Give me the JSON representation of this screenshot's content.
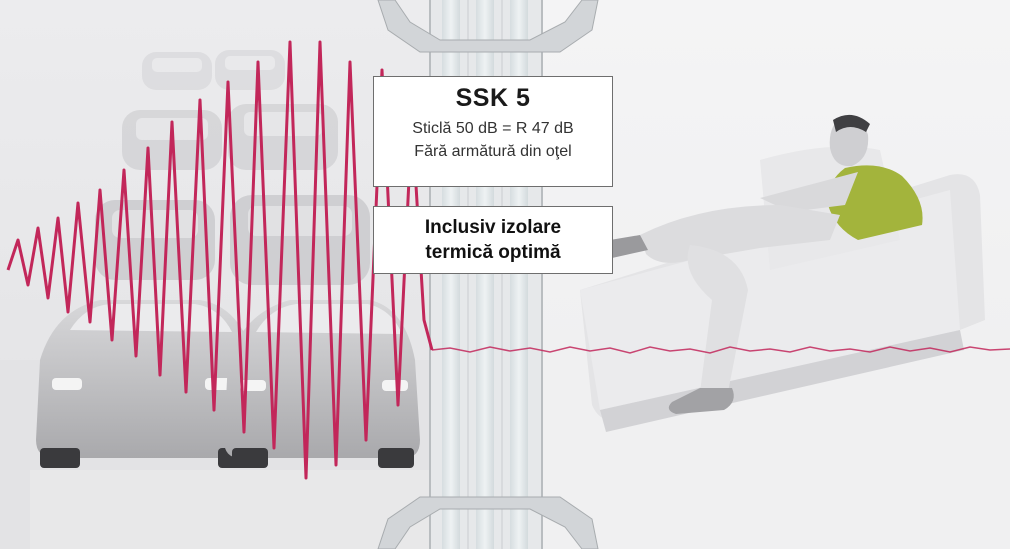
{
  "product_panel": {
    "title": "SSK 5",
    "line1": "Sticlă 50 dB = R 47 dB",
    "line2": "Fără armătură din oţel"
  },
  "feature_panel": {
    "line1": "Inclusiv izolare",
    "line2": "termică optimă"
  },
  "colors": {
    "wave": "#c2275a",
    "sweater": "#a3b43c",
    "panel_border": "#6e6e6e"
  },
  "illustration": {
    "left": "street traffic cars",
    "center": "window frame cross-section",
    "right": "man relaxing on sofa"
  }
}
